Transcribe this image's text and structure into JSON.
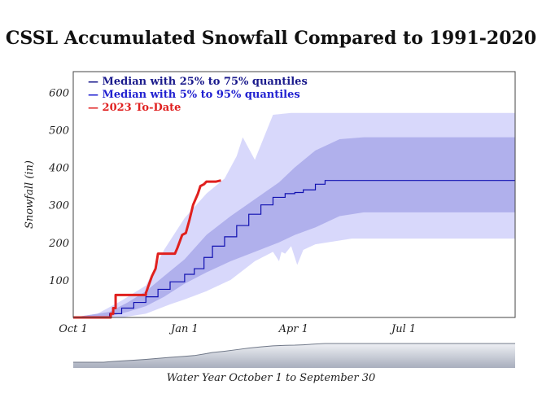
{
  "title": "CSSL Accumulated Snowfall Compared to 1991-2020",
  "chart_data": {
    "type": "area",
    "title": "CSSL Accumulated Snowfall Compared to 1991-2020",
    "ylabel": "Snowfall (in)",
    "xlabel": "Water Year October 1 to September 30",
    "xlim_days": [
      0,
      365
    ],
    "ylim": [
      0,
      655
    ],
    "yticks": [
      100,
      200,
      300,
      400,
      500,
      600
    ],
    "xticks": [
      {
        "label": "Oct 1",
        "day": 0
      },
      {
        "label": "Jan 1",
        "day": 92
      },
      {
        "label": "Apr 1",
        "day": 182
      },
      {
        "label": "Jul 1",
        "day": 273
      }
    ],
    "legend_position": "top-left",
    "legend": [
      {
        "label": "— Median with 25% to 75% quantiles",
        "color": "#1a1a8c"
      },
      {
        "label": "— Median with 5% to 95% quantiles",
        "color": "#1f1fd0"
      },
      {
        "label": "— 2023 To-Date",
        "color": "#e02020"
      }
    ],
    "colors": {
      "median": "#1010b0",
      "band_25_75": "#b0b0ec",
      "band_5_95": "#d8d8fb",
      "current": "#e0201e",
      "overview_fill": "#c8ccd8",
      "overview_line": "#707888"
    },
    "series": [
      {
        "name": "Median",
        "days": [
          0,
          25,
          30,
          40,
          50,
          60,
          70,
          80,
          92,
          100,
          108,
          115,
          125,
          135,
          145,
          155,
          165,
          175,
          183,
          190,
          200,
          208,
          365
        ],
        "values": [
          0,
          0,
          10,
          25,
          40,
          55,
          75,
          95,
          115,
          130,
          160,
          190,
          215,
          245,
          275,
          300,
          320,
          330,
          333,
          340,
          355,
          365,
          365
        ]
      },
      {
        "name": "25% quantile",
        "days": [
          0,
          30,
          45,
          60,
          75,
          92,
          110,
          130,
          150,
          170,
          183,
          200,
          220,
          240,
          365
        ],
        "values": [
          0,
          3,
          15,
          30,
          55,
          90,
          120,
          150,
          175,
          200,
          220,
          240,
          270,
          280,
          280
        ]
      },
      {
        "name": "75% quantile",
        "days": [
          0,
          30,
          45,
          60,
          75,
          92,
          110,
          130,
          150,
          170,
          183,
          200,
          220,
          240,
          365
        ],
        "values": [
          0,
          15,
          40,
          70,
          110,
          155,
          220,
          270,
          315,
          360,
          400,
          445,
          475,
          480,
          480
        ]
      },
      {
        "name": "5% quantile",
        "days": [
          0,
          40,
          60,
          80,
          92,
          110,
          130,
          150,
          165,
          170,
          172,
          175,
          180,
          185,
          190,
          200,
          230,
          365
        ],
        "values": [
          0,
          0,
          10,
          35,
          48,
          70,
          100,
          150,
          175,
          150,
          175,
          170,
          190,
          140,
          180,
          195,
          210,
          210
        ]
      },
      {
        "name": "95% quantile",
        "days": [
          0,
          20,
          40,
          60,
          75,
          92,
          110,
          125,
          135,
          140,
          150,
          165,
          180,
          195,
          230,
          365
        ],
        "values": [
          0,
          10,
          45,
          85,
          180,
          265,
          330,
          370,
          430,
          480,
          420,
          540,
          545,
          545,
          545,
          545
        ]
      },
      {
        "name": "2023 To-Date",
        "days": [
          0,
          31,
          31,
          33,
          33,
          35,
          35,
          60,
          60,
          65,
          68,
          70,
          72,
          84,
          86,
          90,
          93,
          96,
          99,
          103,
          105,
          108,
          110,
          115,
          118,
          122
        ],
        "values": [
          0,
          0,
          10,
          10,
          25,
          25,
          60,
          60,
          65,
          110,
          130,
          170,
          170,
          170,
          185,
          220,
          225,
          260,
          300,
          330,
          350,
          355,
          362,
          362,
          362,
          365
        ]
      }
    ]
  }
}
